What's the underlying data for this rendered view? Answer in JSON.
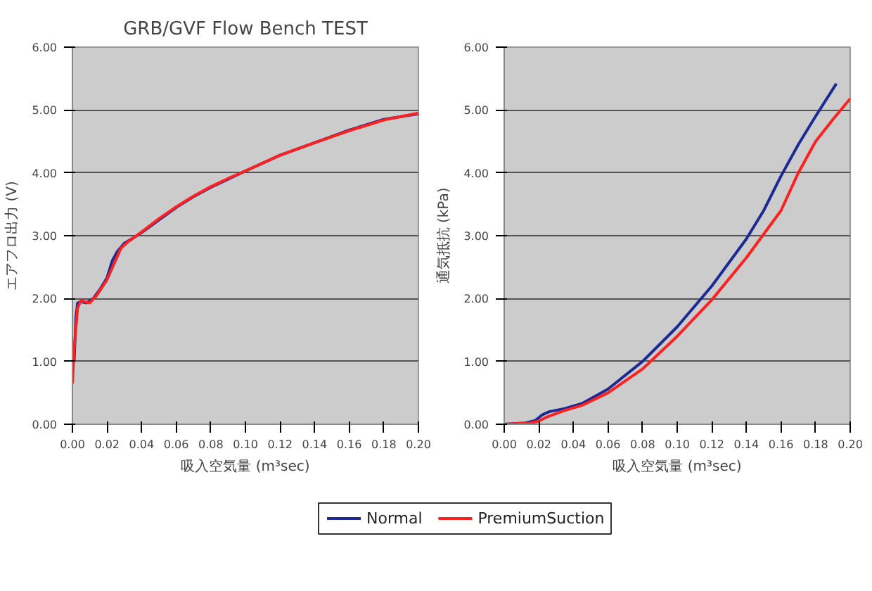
{
  "chart_data": [
    {
      "type": "line",
      "title": "GRB/GVF Flow Bench TEST",
      "xlabel": "吸入空気量 (m³sec)",
      "ylabel": "エアフロ出力 (V)",
      "xlim": [
        0,
        0.2
      ],
      "ylim": [
        0,
        6
      ],
      "xticks": [
        {
          "value": 0,
          "label": "0.00"
        },
        {
          "value": 0.02,
          "label": "0.02"
        },
        {
          "value": 0.04,
          "label": "0.04"
        },
        {
          "value": 0.06,
          "label": "0.06"
        },
        {
          "value": 0.08,
          "label": "0.08"
        },
        {
          "value": 0.1,
          "label": "0.10"
        },
        {
          "value": 0.12,
          "label": "0.12"
        },
        {
          "value": 0.14,
          "label": "0.14"
        },
        {
          "value": 0.16,
          "label": "0.16"
        },
        {
          "value": 0.18,
          "label": "0.18"
        },
        {
          "value": 0.2,
          "label": "0.20"
        }
      ],
      "yticks": [
        {
          "value": 0,
          "label": "0.00"
        },
        {
          "value": 1,
          "label": "1.00"
        },
        {
          "value": 2,
          "label": "2.00"
        },
        {
          "value": 3,
          "label": "3.00"
        },
        {
          "value": 4,
          "label": "4.00"
        },
        {
          "value": 5,
          "label": "5.00"
        },
        {
          "value": 6,
          "label": "6.00"
        }
      ],
      "grid": "y",
      "marker": "none",
      "line_style": "solid",
      "legend": "bottom",
      "series": [
        {
          "name": "Normal",
          "color": "#1c2a94",
          "x": [
            0.001,
            0.002,
            0.003,
            0.005,
            0.008,
            0.012,
            0.016,
            0.02,
            0.023,
            0.026,
            0.03,
            0.035,
            0.04,
            0.05,
            0.06,
            0.07,
            0.08,
            0.09,
            0.1,
            0.12,
            0.14,
            0.16,
            0.18,
            0.2
          ],
          "values": [
            1.0,
            1.7,
            1.93,
            1.95,
            1.93,
            2.0,
            2.15,
            2.33,
            2.6,
            2.75,
            2.88,
            2.96,
            3.05,
            3.25,
            3.45,
            3.62,
            3.77,
            3.9,
            4.03,
            4.28,
            4.48,
            4.68,
            4.85,
            4.94
          ]
        },
        {
          "name": "PremiumSuction",
          "color": "#ff2020",
          "x": [
            0.0,
            0.001,
            0.003,
            0.005,
            0.007,
            0.01,
            0.014,
            0.02,
            0.024,
            0.028,
            0.032,
            0.04,
            0.05,
            0.06,
            0.07,
            0.08,
            0.09,
            0.1,
            0.12,
            0.14,
            0.16,
            0.18,
            0.2
          ],
          "values": [
            0.65,
            1.2,
            1.85,
            1.97,
            1.95,
            1.93,
            2.05,
            2.3,
            2.55,
            2.8,
            2.9,
            3.06,
            3.27,
            3.46,
            3.63,
            3.78,
            3.91,
            4.03,
            4.28,
            4.48,
            4.67,
            4.84,
            4.95
          ]
        }
      ]
    },
    {
      "type": "line",
      "xlabel": "吸入空気量 (m³sec)",
      "ylabel": "通気抵抗 (kPa)",
      "xlim": [
        0,
        0.2
      ],
      "ylim": [
        0,
        6
      ],
      "xticks": [
        {
          "value": 0,
          "label": "0.00"
        },
        {
          "value": 0.02,
          "label": "0.02"
        },
        {
          "value": 0.04,
          "label": "0.04"
        },
        {
          "value": 0.06,
          "label": "0.06"
        },
        {
          "value": 0.08,
          "label": "0.08"
        },
        {
          "value": 0.1,
          "label": "0.10"
        },
        {
          "value": 0.12,
          "label": "0.12"
        },
        {
          "value": 0.14,
          "label": "0.14"
        },
        {
          "value": 0.16,
          "label": "0.16"
        },
        {
          "value": 0.18,
          "label": "0.18"
        },
        {
          "value": 0.2,
          "label": "0.20"
        }
      ],
      "yticks": [
        {
          "value": 0,
          "label": "0.00"
        },
        {
          "value": 1,
          "label": "1.00"
        },
        {
          "value": 2,
          "label": "2.00"
        },
        {
          "value": 3,
          "label": "3.00"
        },
        {
          "value": 4,
          "label": "4.00"
        },
        {
          "value": 5,
          "label": "5.00"
        },
        {
          "value": 6,
          "label": "6.00"
        }
      ],
      "grid": "y",
      "marker": "none",
      "line_style": "solid",
      "series": [
        {
          "color": "#1c2a94",
          "x": [
            0,
            0.012,
            0.018,
            0.022,
            0.026,
            0.035,
            0.045,
            0.06,
            0.08,
            0.1,
            0.12,
            0.14,
            0.15,
            0.16,
            0.17,
            0.18,
            0.192
          ],
          "values": [
            0,
            0.02,
            0.06,
            0.15,
            0.2,
            0.25,
            0.33,
            0.56,
            1.0,
            1.55,
            2.2,
            2.95,
            3.4,
            3.95,
            4.45,
            4.9,
            5.42
          ]
        },
        {
          "color": "#ff2020",
          "x": [
            0,
            0.015,
            0.02,
            0.025,
            0.035,
            0.045,
            0.06,
            0.08,
            0.1,
            0.12,
            0.14,
            0.16,
            0.17,
            0.18,
            0.19,
            0.2
          ],
          "values": [
            0,
            0.02,
            0.05,
            0.12,
            0.22,
            0.3,
            0.5,
            0.88,
            1.4,
            1.98,
            2.65,
            3.4,
            4.0,
            4.5,
            4.85,
            5.18
          ]
        }
      ]
    }
  ]
}
